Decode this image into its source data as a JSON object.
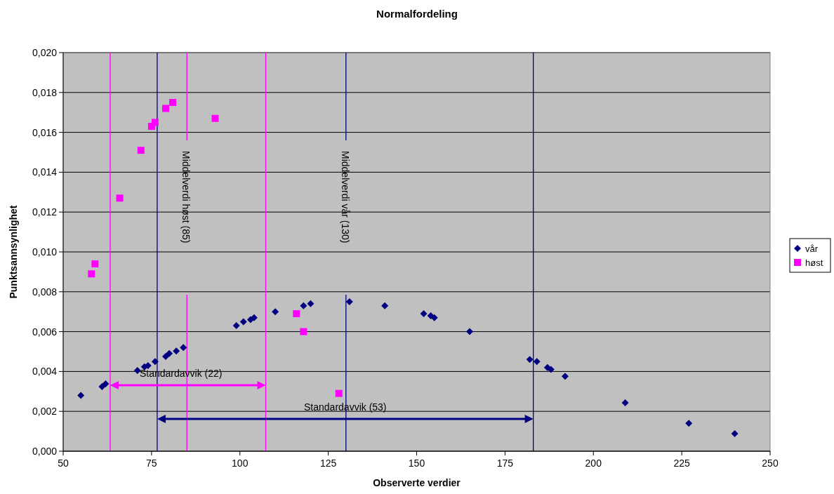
{
  "chart_data": {
    "type": "scatter",
    "title": "Normalfordeling",
    "xlabel": "Observerte verdier",
    "ylabel": "Punktsannsynlighet",
    "xlim": [
      50,
      250
    ],
    "xticks": [
      50,
      75,
      100,
      125,
      150,
      175,
      200,
      225,
      250
    ],
    "ylim": [
      0,
      0.02
    ],
    "yticks": [
      {
        "value": 0,
        "label": "0,000"
      },
      {
        "value": 0.002,
        "label": "0,002"
      },
      {
        "value": 0.004,
        "label": "0,004"
      },
      {
        "value": 0.006,
        "label": "0,006"
      },
      {
        "value": 0.008,
        "label": "0,008"
      },
      {
        "value": 0.01,
        "label": "0,010"
      },
      {
        "value": 0.012,
        "label": "0,012"
      },
      {
        "value": 0.014,
        "label": "0,014"
      },
      {
        "value": 0.016,
        "label": "0,016"
      },
      {
        "value": 0.018,
        "label": "0,018"
      },
      {
        "value": 0.02,
        "label": "0,020"
      }
    ],
    "grid": "y",
    "legend": "right",
    "series": [
      {
        "name": "vår",
        "color": "#000080",
        "marker": "diamond",
        "x": [
          55,
          61,
          62,
          71,
          73,
          74,
          76,
          79,
          80,
          82,
          84,
          99,
          101,
          103,
          104,
          110,
          118,
          120,
          131,
          141,
          152,
          154,
          155,
          165,
          182,
          184,
          187,
          188,
          192,
          209,
          227,
          240
        ],
        "values": [
          0.0028,
          0.00324,
          0.00338,
          0.00405,
          0.00423,
          0.0043,
          0.0045,
          0.00475,
          0.0049,
          0.00503,
          0.0052,
          0.0063,
          0.0065,
          0.0066,
          0.0067,
          0.007,
          0.0073,
          0.0074,
          0.0075,
          0.0073,
          0.0069,
          0.0068,
          0.0067,
          0.006,
          0.0046,
          0.0045,
          0.0042,
          0.0041,
          0.00376,
          0.00243,
          0.0014,
          0.00088
        ]
      },
      {
        "name": "høst",
        "color": "#ff00ff",
        "marker": "square",
        "x": [
          58,
          59,
          66,
          72,
          75,
          76,
          79,
          81,
          93,
          116,
          118,
          128
        ],
        "values": [
          0.0089,
          0.0094,
          0.0127,
          0.0151,
          0.0163,
          0.0165,
          0.0172,
          0.0175,
          0.0167,
          0.0069,
          0.006,
          0.0029
        ]
      }
    ],
    "ref_lines": [
      {
        "axis": "x",
        "value": 85,
        "label": "Middelverdi høst (85)",
        "color": "#ff00ff"
      },
      {
        "axis": "x",
        "value": 63.3,
        "color": "#ff00ff"
      },
      {
        "axis": "x",
        "value": 107.3,
        "color": "#ff00ff"
      },
      {
        "axis": "x",
        "value": 130,
        "label": "Middelverdi vår (130)",
        "color": "#000080"
      },
      {
        "axis": "x",
        "value": 76.6,
        "color": "#000080"
      },
      {
        "axis": "x",
        "value": 183,
        "color": "#000080"
      }
    ],
    "annotations": [
      "Standardavvik (22)",
      "Standardavvik (53)"
    ]
  }
}
